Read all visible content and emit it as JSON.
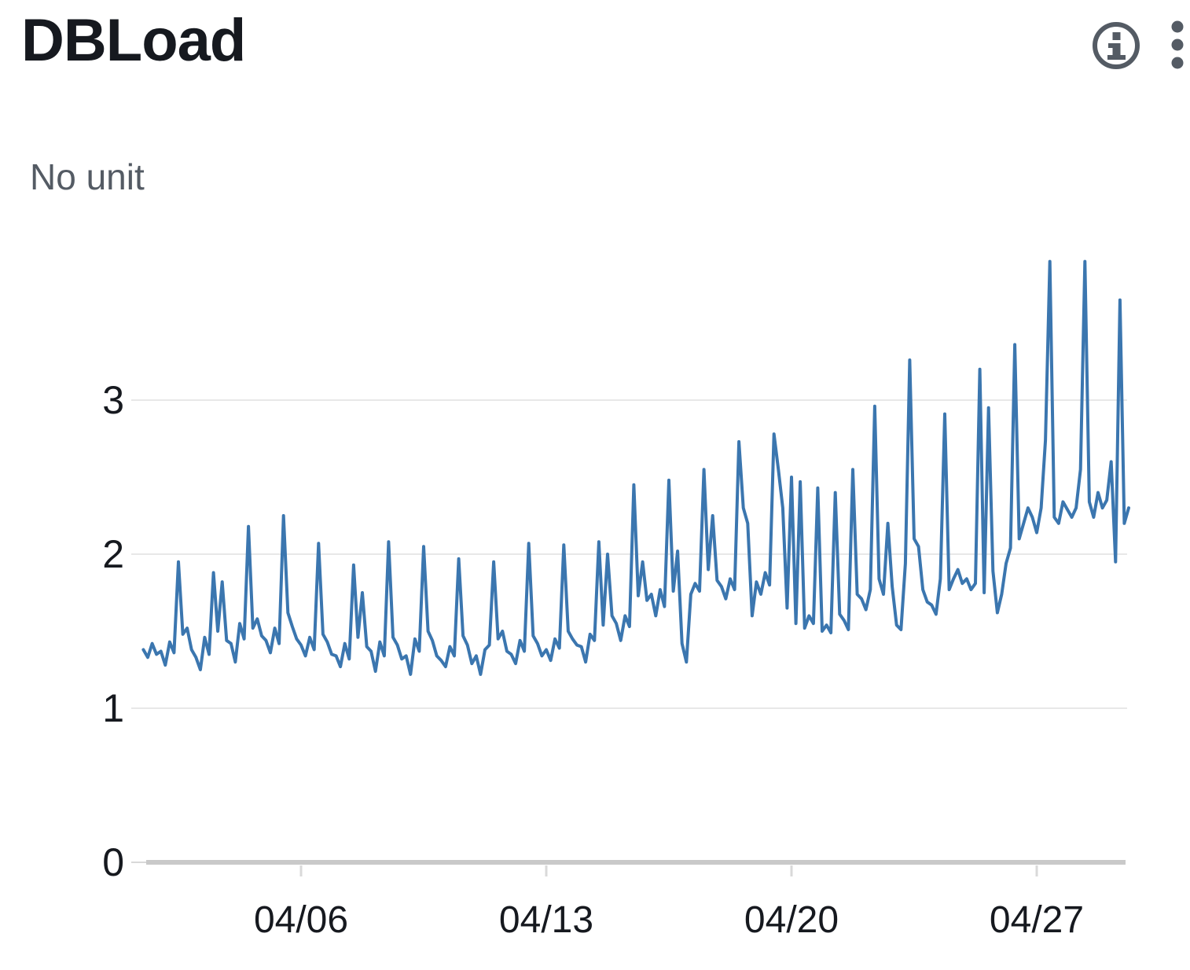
{
  "widget": {
    "title": "DBLoad",
    "unit_label": "No unit"
  },
  "toolbar": {
    "icons": [
      "info-icon",
      "vertical-ellipsis-icon"
    ]
  },
  "colors": {
    "line": "#3b76af",
    "grid": "#e8e8e8",
    "axis": "#c9c9c9",
    "tick": "#d9d9d9",
    "title_text": "#16191f",
    "tick_label": "#16191f",
    "unit_text": "#545b64",
    "icon": "#545b64"
  },
  "chart_data": {
    "type": "line",
    "title": "DBLoad",
    "unit": "No unit",
    "legend_position": "none",
    "grid": true,
    "series": [
      {
        "name": "DBLoad",
        "color": "#3b76af"
      }
    ],
    "x_axis": {
      "ticks": [
        {
          "day": 6,
          "label": "04/06"
        },
        {
          "day": 13,
          "label": "04/13"
        },
        {
          "day": 20,
          "label": "04/20"
        },
        {
          "day": 27,
          "label": "04/27"
        }
      ],
      "range_days": [
        1.5,
        29.63
      ]
    },
    "y_axis": {
      "ticks": [
        {
          "value": 0,
          "label": "0"
        },
        {
          "value": 1,
          "label": "1"
        },
        {
          "value": 2,
          "label": "2"
        },
        {
          "value": 3,
          "label": "3"
        }
      ],
      "range": [
        0,
        4.1
      ]
    },
    "sampling": {
      "x_start_day": 1.5,
      "x_step_days": 0.125
    },
    "values": [
      1.38,
      1.33,
      1.42,
      1.35,
      1.37,
      1.28,
      1.43,
      1.36,
      1.95,
      1.48,
      1.52,
      1.38,
      1.33,
      1.25,
      1.46,
      1.35,
      1.88,
      1.5,
      1.82,
      1.44,
      1.42,
      1.3,
      1.55,
      1.45,
      2.18,
      1.52,
      1.58,
      1.47,
      1.44,
      1.36,
      1.52,
      1.42,
      2.25,
      1.62,
      1.53,
      1.45,
      1.41,
      1.34,
      1.46,
      1.38,
      2.07,
      1.48,
      1.43,
      1.35,
      1.34,
      1.27,
      1.42,
      1.32,
      1.93,
      1.46,
      1.75,
      1.4,
      1.37,
      1.24,
      1.43,
      1.34,
      2.08,
      1.46,
      1.41,
      1.32,
      1.34,
      1.22,
      1.45,
      1.37,
      2.05,
      1.5,
      1.44,
      1.34,
      1.31,
      1.27,
      1.4,
      1.34,
      1.97,
      1.47,
      1.41,
      1.29,
      1.34,
      1.22,
      1.38,
      1.41,
      1.95,
      1.45,
      1.5,
      1.37,
      1.35,
      1.29,
      1.44,
      1.37,
      2.07,
      1.47,
      1.42,
      1.34,
      1.38,
      1.31,
      1.45,
      1.39,
      2.06,
      1.5,
      1.45,
      1.41,
      1.4,
      1.3,
      1.48,
      1.44,
      2.08,
      1.54,
      2.0,
      1.6,
      1.55,
      1.44,
      1.6,
      1.53,
      2.45,
      1.73,
      1.95,
      1.7,
      1.74,
      1.6,
      1.77,
      1.66,
      2.48,
      1.76,
      2.02,
      1.42,
      1.3,
      1.74,
      1.81,
      1.76,
      2.55,
      1.9,
      2.25,
      1.83,
      1.79,
      1.71,
      1.84,
      1.77,
      2.73,
      2.3,
      2.2,
      1.6,
      1.82,
      1.74,
      1.88,
      1.8,
      2.78,
      2.55,
      2.3,
      1.65,
      2.5,
      1.55,
      2.47,
      1.52,
      1.6,
      1.55,
      2.43,
      1.5,
      1.54,
      1.49,
      2.4,
      1.61,
      1.57,
      1.51,
      2.55,
      1.74,
      1.71,
      1.64,
      1.77,
      2.96,
      1.84,
      1.74,
      2.2,
      1.79,
      1.54,
      1.51,
      1.94,
      3.26,
      2.1,
      2.05,
      1.77,
      1.69,
      1.67,
      1.61,
      1.84,
      2.91,
      1.77,
      1.84,
      1.9,
      1.81,
      1.84,
      1.77,
      1.81,
      3.2,
      1.75,
      2.95,
      1.89,
      1.62,
      1.74,
      1.94,
      2.04,
      3.36,
      2.1,
      2.2,
      2.3,
      2.24,
      2.14,
      2.3,
      2.74,
      3.9,
      2.24,
      2.2,
      2.34,
      2.29,
      2.24,
      2.3,
      2.55,
      3.9,
      2.34,
      2.24,
      2.4,
      2.3,
      2.35,
      2.6,
      1.95,
      3.65,
      2.2,
      2.3
    ]
  }
}
